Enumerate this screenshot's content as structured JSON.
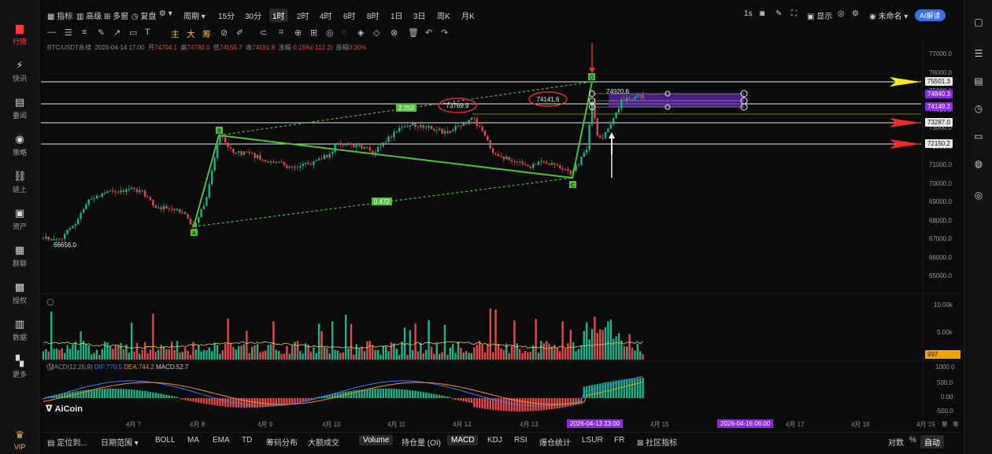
{
  "sidebar": {
    "items": [
      {
        "label": "行情",
        "icon": "chart-bar-icon",
        "active": true
      },
      {
        "label": "快讯",
        "icon": "newsflash-icon"
      },
      {
        "label": "要闻",
        "icon": "news-icon"
      },
      {
        "label": "策略",
        "icon": "robot-icon"
      },
      {
        "label": "链上",
        "icon": "chain-icon"
      },
      {
        "label": "资产",
        "icon": "wallet-icon"
      },
      {
        "label": "群聊",
        "icon": "chat-icon"
      },
      {
        "label": "授权",
        "icon": "key-icon"
      },
      {
        "label": "数据",
        "icon": "data-icon"
      },
      {
        "label": "更多",
        "icon": "grid-icon"
      },
      {
        "label": "VIP",
        "icon": "crown-icon"
      }
    ]
  },
  "topbar": {
    "indicator": "指标",
    "advanced": "高级",
    "multi": "多窗",
    "replay": "复盘",
    "period": "周期",
    "intervals": [
      "15分",
      "30分",
      "1时",
      "2时",
      "4时",
      "6时",
      "8时",
      "1日",
      "3日",
      "周K",
      "月K"
    ],
    "selected_interval": "1时",
    "seconds": "1s",
    "display": "显示",
    "layout_name": "未命名",
    "ai_button": "AI解读"
  },
  "ohlc": {
    "symbol": "BTC/USDT永续",
    "time": "2026-04-14 17:00",
    "open_label": "开",
    "open": "74704.1",
    "high_label": "高",
    "high": "74780.0",
    "low_label": "低",
    "low": "74555.7",
    "close_label": "收",
    "close": "74591.9",
    "change_label": "涨幅",
    "change": "-0.15%(-112.2)",
    "amp_label": "振幅",
    "amp": "0.30%"
  },
  "price_axis": [
    "77000.0",
    "76000.0",
    "75000.0",
    "74000.0",
    "73000.0",
    "72000.0",
    "71000.0",
    "70000.0",
    "69000.0",
    "68000.0",
    "67000.0",
    "66000.0",
    "65000.0"
  ],
  "price_tags": {
    "t1": "75501.3",
    "t2": "74840.3",
    "t3": "74149.2",
    "t4": "73287.0",
    "t5": "72150.2",
    "low_label": "66656.0",
    "peak1": "73769.9",
    "peak2": "74141.6",
    "current": "74920.6",
    "fib1": "2.253",
    "fib2": "0.472",
    "pt_a": "A",
    "pt_b": "B",
    "pt_c": "C",
    "pt_d": "D"
  },
  "volume_axis": [
    "10.00k",
    "5.00k"
  ],
  "volume_tag": "997",
  "macd": {
    "label": "MACD(12,26,9)",
    "dif": "DIF:770.5",
    "dea": "DEA:744.2",
    "macd": "MACD:52.7",
    "axis": [
      "1000.0",
      "500.0",
      "0.00",
      "-500.0"
    ]
  },
  "xaxis": [
    "4月 7",
    "4月 8",
    "4月 9",
    "4月 10",
    "4月 11",
    "4月 12",
    "4月 13",
    "4月 15",
    "4月 17",
    "4月 18",
    "4月 19"
  ],
  "xaxis_tags": [
    "2026-04-13 23:00",
    "2026-04-16 06:00"
  ],
  "xaxis_right": [
    "筹",
    "筹"
  ],
  "logo": "AiCoin",
  "bottombar": {
    "items": [
      "定位到...",
      "日期范围",
      "BOLL",
      "MA",
      "EMA",
      "TD",
      "筹码分布",
      "大额成交",
      "Volume",
      "持仓量 (OI)",
      "MACD",
      "KDJ",
      "RSI",
      "爆仓统计",
      "LSUR",
      "FR",
      "社区指标"
    ],
    "selected": [
      "Volume",
      "MACD"
    ],
    "right": [
      "对数",
      "%",
      "自动"
    ]
  }
}
